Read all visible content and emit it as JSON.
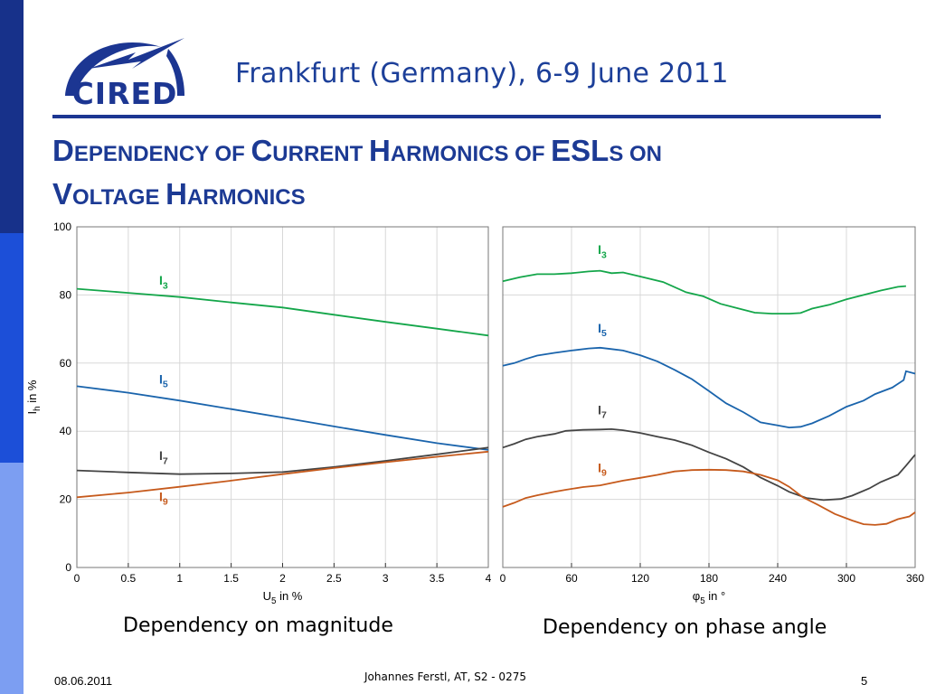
{
  "header": {
    "logo_text": "CIRED",
    "date_location": "Frankfurt (Germany), 6-9 June 2011"
  },
  "title": {
    "line1": [
      {
        "text": "D",
        "big": true
      },
      {
        "text": "EPENDENCY OF ",
        "big": false
      },
      {
        "text": "C",
        "big": true
      },
      {
        "text": "URRENT ",
        "big": false
      },
      {
        "text": "H",
        "big": true
      },
      {
        "text": "ARMONICS OF ",
        "big": false
      },
      {
        "text": "ESL",
        "big": true
      },
      {
        "text": "S ON",
        "big": false
      }
    ],
    "line2": [
      {
        "text": "V",
        "big": true
      },
      {
        "text": "OLTAGE ",
        "big": false
      },
      {
        "text": "H",
        "big": true
      },
      {
        "text": "ARMONICS",
        "big": false
      }
    ]
  },
  "chart_data": [
    {
      "type": "line",
      "xlim": [
        0,
        4
      ],
      "ylim": [
        0,
        100
      ],
      "x_ticks": [
        "0",
        "0.5",
        "1",
        "1.5",
        "2",
        "2.5",
        "3",
        "3.5",
        "4"
      ],
      "y_ticks": [
        "0",
        "20",
        "40",
        "60",
        "80",
        "100"
      ],
      "xlabel": {
        "base": "U",
        "sub": "5",
        "rest": " in %"
      },
      "ylabel": {
        "base": "I",
        "sub": "h",
        "rest": " in %"
      },
      "grid": true,
      "series": [
        {
          "name": "I3",
          "label_base": "I",
          "label_sub": "3",
          "color": "#14a64a",
          "label_at": [
            0.8,
            83
          ],
          "points": [
            [
              0,
              81.8
            ],
            [
              0.5,
              80.6
            ],
            [
              1,
              79.4
            ],
            [
              1.5,
              77.8
            ],
            [
              2,
              76.3
            ],
            [
              2.5,
              74.2
            ],
            [
              3,
              72.1
            ],
            [
              3.5,
              70.1
            ],
            [
              4,
              68.1
            ]
          ]
        },
        {
          "name": "I5",
          "label_base": "I",
          "label_sub": "5",
          "color": "#1a64ac",
          "label_at": [
            0.8,
            54
          ],
          "points": [
            [
              0,
              53.2
            ],
            [
              0.5,
              51.3
            ],
            [
              1,
              49
            ],
            [
              1.5,
              46.5
            ],
            [
              2,
              44
            ],
            [
              2.5,
              41.4
            ],
            [
              3,
              38.9
            ],
            [
              3.5,
              36.5
            ],
            [
              4,
              34.5
            ]
          ]
        },
        {
          "name": "I7",
          "label_base": "I",
          "label_sub": "7",
          "color": "#444444",
          "label_at": [
            0.8,
            31.5
          ],
          "points": [
            [
              0,
              28.5
            ],
            [
              0.5,
              27.9
            ],
            [
              1,
              27.4
            ],
            [
              1.5,
              27.6
            ],
            [
              2,
              28
            ],
            [
              2.5,
              29.5
            ],
            [
              3,
              31.3
            ],
            [
              3.5,
              33.2
            ],
            [
              4,
              35.2
            ]
          ]
        },
        {
          "name": "I9",
          "label_base": "I",
          "label_sub": "9",
          "color": "#c65a1c",
          "label_at": [
            0.8,
            19.5
          ],
          "points": [
            [
              0,
              20.6
            ],
            [
              0.5,
              22
            ],
            [
              1,
              23.7
            ],
            [
              1.5,
              25.5
            ],
            [
              2,
              27.4
            ],
            [
              2.5,
              29.2
            ],
            [
              3,
              30.9
            ],
            [
              3.5,
              32.5
            ],
            [
              4,
              34
            ]
          ]
        }
      ]
    },
    {
      "type": "line",
      "xlim": [
        0,
        360
      ],
      "ylim": [
        0,
        100
      ],
      "x_ticks": [
        "0",
        "60",
        "120",
        "180",
        "240",
        "300",
        "360"
      ],
      "y_ticks": [
        "0",
        "20",
        "40",
        "60",
        "80",
        "100"
      ],
      "xlabel": {
        "base": "φ",
        "sub": "5",
        "rest": " in °"
      },
      "ylabel": null,
      "grid": true,
      "series": [
        {
          "name": "I3",
          "label_base": "I",
          "label_sub": "3",
          "color": "#14a64a",
          "label_at": [
            83,
            92
          ],
          "points": [
            [
              0,
              84
            ],
            [
              15,
              85.2
            ],
            [
              30,
              86.1
            ],
            [
              45,
              86.1
            ],
            [
              60,
              86.4
            ],
            [
              75,
              86.9
            ],
            [
              85,
              87.1
            ],
            [
              95,
              86.4
            ],
            [
              105,
              86.6
            ],
            [
              120,
              85.4
            ],
            [
              140,
              83.8
            ],
            [
              160,
              80.8
            ],
            [
              175,
              79.6
            ],
            [
              190,
              77.4
            ],
            [
              205,
              76.1
            ],
            [
              220,
              74.8
            ],
            [
              235,
              74.5
            ],
            [
              250,
              74.5
            ],
            [
              260,
              74.7
            ],
            [
              270,
              76
            ],
            [
              285,
              77.1
            ],
            [
              300,
              78.7
            ],
            [
              315,
              80
            ],
            [
              330,
              81.3
            ],
            [
              345,
              82.4
            ],
            [
              352,
              82.6
            ]
          ]
        },
        {
          "name": "I5",
          "label_base": "I",
          "label_sub": "5",
          "color": "#1a64ac",
          "label_at": [
            83,
            69
          ]
        },
        {
          "name": "I7",
          "label_base": "I",
          "label_sub": "7",
          "color": "#444444",
          "label_at": [
            83,
            45
          ]
        },
        {
          "name": "I9",
          "label_base": "I",
          "label_sub": "9",
          "color": "#c65a1c",
          "label_at": [
            83,
            28
          ]
        }
      ]
    }
  ],
  "captions": {
    "left": "Dependency on magnitude",
    "right": "Dependency on phase angle"
  },
  "footer": {
    "date": "08.06.2011",
    "author": "Johannes Ferstl, AT, S2 - 0275",
    "page": "5"
  },
  "colors": {
    "brand_blue": "#1c3692",
    "sidebar": [
      "#17318a",
      "#1b46bd",
      "#3b6cf0",
      "#97b4f5"
    ]
  }
}
